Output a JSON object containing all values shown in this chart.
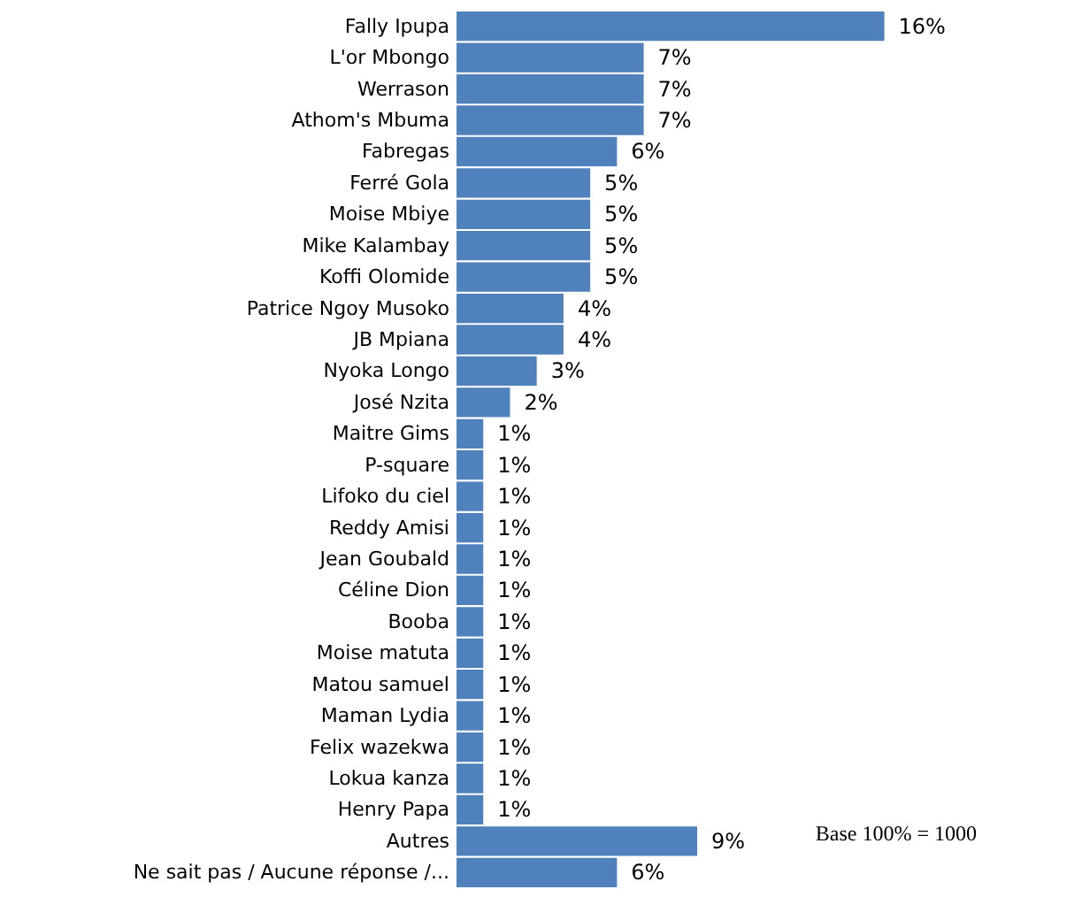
{
  "chart_data": {
    "type": "bar",
    "orientation": "horizontal",
    "categories": [
      "Fally Ipupa",
      "L'or Mbongo",
      "Werrason",
      "Athom's Mbuma",
      "Fabregas",
      "Ferré Gola",
      "Moise Mbiye",
      "Mike Kalambay",
      "Koffi Olomide",
      "Patrice Ngoy Musoko",
      "JB Mpiana",
      "Nyoka Longo",
      "José Nzita",
      "Maitre Gims",
      "P-square",
      "Lifoko du ciel",
      "Reddy Amisi",
      "Jean Goubald",
      "Céline Dion",
      "Booba",
      "Moise matuta",
      "Matou samuel",
      "Maman Lydia",
      "Felix wazekwa",
      "Lokua kanza",
      "Henry Papa",
      "Autres",
      "Ne sait pas / Aucune réponse /..."
    ],
    "values": [
      16,
      7,
      7,
      7,
      6,
      5,
      5,
      5,
      5,
      4,
      4,
      3,
      2,
      1,
      1,
      1,
      1,
      1,
      1,
      1,
      1,
      1,
      1,
      1,
      1,
      1,
      9,
      6
    ],
    "value_labels": [
      "16%",
      "7%",
      "7%",
      "7%",
      "6%",
      "5%",
      "5%",
      "5%",
      "5%",
      "4%",
      "4%",
      "3%",
      "2%",
      "1%",
      "1%",
      "1%",
      "1%",
      "1%",
      "1%",
      "1%",
      "1%",
      "1%",
      "1%",
      "1%",
      "1%",
      "1%",
      "9%",
      "6%"
    ],
    "color": "#4f81bd",
    "annotations": [
      "Base 100% = 1000"
    ]
  }
}
